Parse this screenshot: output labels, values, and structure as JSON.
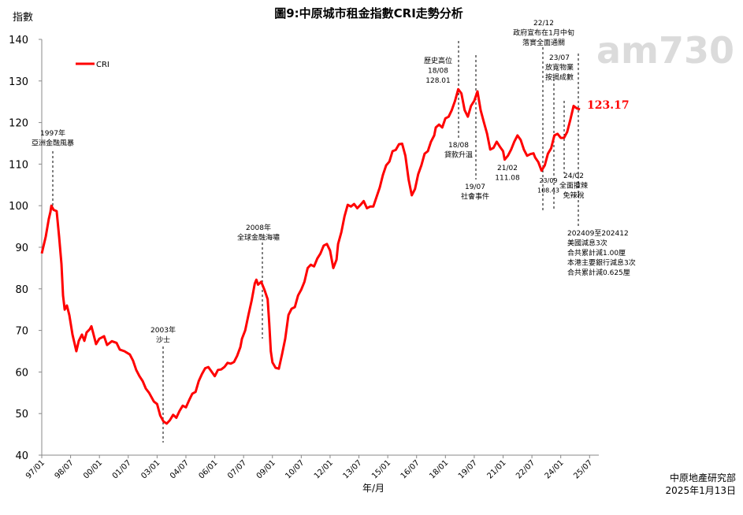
{
  "chart_data": {
    "type": "line",
    "title": "圖9:中原城市租金指數CRI走勢分析",
    "ylabel": "指數",
    "xlabel": "年/月",
    "ylim": [
      40,
      140
    ],
    "yticks": [
      40,
      50,
      60,
      70,
      80,
      90,
      100,
      110,
      120,
      130,
      140
    ],
    "x_unit": "months since 1997/01",
    "xlim": [
      0,
      342
    ],
    "xticks": [
      "97/01",
      "98/07",
      "00/01",
      "01/07",
      "03/01",
      "04/07",
      "06/01",
      "07/07",
      "09/01",
      "10/07",
      "12/01",
      "13/07",
      "15/01",
      "16/07",
      "18/01",
      "19/07",
      "21/01",
      "22/07",
      "24/01",
      "25/07"
    ],
    "xtick_step_months": 18,
    "grid": false,
    "legend": {
      "position": "top-left",
      "entries": [
        "CRI"
      ]
    },
    "series": [
      {
        "name": "CRI",
        "color": "#ff0000",
        "points": [
          [
            0,
            88.5
          ],
          [
            2.5,
            92.6
          ],
          [
            4.4,
            96.8
          ],
          [
            5.4,
            98.5
          ],
          [
            6,
            100
          ],
          [
            7.4,
            99
          ],
          [
            9.3,
            98.7
          ],
          [
            10.8,
            92.6
          ],
          [
            12.3,
            86
          ],
          [
            13.3,
            78.4
          ],
          [
            14.3,
            75
          ],
          [
            15.7,
            76
          ],
          [
            17.2,
            73.7
          ],
          [
            19.2,
            69
          ],
          [
            21.6,
            65
          ],
          [
            23.1,
            67.5
          ],
          [
            25.1,
            69
          ],
          [
            26.6,
            67.5
          ],
          [
            28,
            69.5
          ],
          [
            30,
            70.3
          ],
          [
            31,
            71
          ],
          [
            32,
            69.5
          ],
          [
            33.9,
            66.7
          ],
          [
            35.9,
            68
          ],
          [
            38.9,
            68.6
          ],
          [
            40.8,
            66.5
          ],
          [
            43.8,
            67.4
          ],
          [
            46.7,
            67
          ],
          [
            48.7,
            65.4
          ],
          [
            51.6,
            65
          ],
          [
            55,
            64.2
          ],
          [
            57,
            62.7
          ],
          [
            59,
            60.5
          ],
          [
            61,
            59
          ],
          [
            63,
            57.8
          ],
          [
            65,
            56
          ],
          [
            67,
            55
          ],
          [
            70,
            52.9
          ],
          [
            72,
            52.3
          ],
          [
            74,
            49.5
          ],
          [
            76,
            48.1
          ],
          [
            78,
            47.6
          ],
          [
            80,
            48.4
          ],
          [
            82,
            49.7
          ],
          [
            84,
            49
          ],
          [
            86,
            50.6
          ],
          [
            88,
            51.9
          ],
          [
            90,
            51.5
          ],
          [
            92,
            53.2
          ],
          [
            94,
            54.8
          ],
          [
            96,
            55.2
          ],
          [
            98,
            57.8
          ],
          [
            100,
            59.5
          ],
          [
            102,
            60.9
          ],
          [
            104,
            61.2
          ],
          [
            106,
            60.1
          ],
          [
            108,
            59
          ],
          [
            110,
            60.5
          ],
          [
            112,
            60.6
          ],
          [
            114,
            61.2
          ],
          [
            116,
            62.2
          ],
          [
            118,
            62
          ],
          [
            120,
            62.4
          ],
          [
            122,
            63.9
          ],
          [
            124,
            66
          ],
          [
            125,
            68
          ],
          [
            127,
            70
          ],
          [
            129,
            73.7
          ],
          [
            131,
            77.1
          ],
          [
            133,
            81.3
          ],
          [
            134,
            82.2
          ],
          [
            135,
            81
          ],
          [
            137,
            81.7
          ],
          [
            139,
            79.8
          ],
          [
            141,
            77.5
          ],
          [
            142,
            71.8
          ],
          [
            143,
            65
          ],
          [
            144,
            62.3
          ],
          [
            146,
            61
          ],
          [
            148,
            60.8
          ],
          [
            150,
            64.2
          ],
          [
            152,
            68
          ],
          [
            154,
            73.7
          ],
          [
            156,
            75.2
          ],
          [
            158,
            75.6
          ],
          [
            160,
            78.4
          ],
          [
            162,
            79.8
          ],
          [
            164,
            81.7
          ],
          [
            166,
            85
          ],
          [
            168,
            85.8
          ],
          [
            170,
            85.4
          ],
          [
            172,
            87.3
          ],
          [
            174,
            88.5
          ],
          [
            176,
            90.4
          ],
          [
            178,
            90.8
          ],
          [
            180,
            89.2
          ],
          [
            182,
            85
          ],
          [
            184,
            87
          ],
          [
            185,
            90.8
          ],
          [
            187,
            93.6
          ],
          [
            189,
            97.4
          ],
          [
            191,
            100.2
          ],
          [
            193,
            99.8
          ],
          [
            195,
            100.4
          ],
          [
            197,
            99.4
          ],
          [
            199,
            100.2
          ],
          [
            201,
            101.1
          ],
          [
            203,
            99.4
          ],
          [
            205,
            99.8
          ],
          [
            207,
            99.8
          ],
          [
            209,
            102.1
          ],
          [
            211,
            104.4
          ],
          [
            213,
            107.4
          ],
          [
            215,
            109.7
          ],
          [
            217,
            110.6
          ],
          [
            219,
            113.1
          ],
          [
            221,
            113.4
          ],
          [
            223,
            114.8
          ],
          [
            225,
            114.9
          ],
          [
            227,
            112
          ],
          [
            229,
            106.3
          ],
          [
            231,
            102.5
          ],
          [
            233,
            104
          ],
          [
            235,
            107.6
          ],
          [
            237,
            109.7
          ],
          [
            239,
            112.5
          ],
          [
            241,
            113.1
          ],
          [
            243,
            115.4
          ],
          [
            245,
            116.9
          ],
          [
            246,
            118.8
          ],
          [
            248,
            119.5
          ],
          [
            250,
            118.8
          ],
          [
            252,
            121
          ],
          [
            254,
            121.4
          ],
          [
            256,
            123
          ],
          [
            258,
            125.2
          ],
          [
            260,
            128.01
          ],
          [
            262,
            127
          ],
          [
            264,
            123
          ],
          [
            266,
            121.4
          ],
          [
            268,
            124
          ],
          [
            270,
            125.2
          ],
          [
            272,
            127.5
          ],
          [
            274,
            123
          ],
          [
            276,
            120.1
          ],
          [
            278,
            117.3
          ],
          [
            280,
            113.5
          ],
          [
            282,
            113.9
          ],
          [
            284,
            115.4
          ],
          [
            286,
            114.2
          ],
          [
            288,
            113.1
          ],
          [
            289,
            111.08
          ],
          [
            291,
            112
          ],
          [
            293,
            113.5
          ],
          [
            295,
            115.4
          ],
          [
            297,
            116.9
          ],
          [
            299,
            115.8
          ],
          [
            301,
            113.5
          ],
          [
            303,
            112
          ],
          [
            305,
            112.4
          ],
          [
            307,
            112.6
          ],
          [
            308,
            111.6
          ],
          [
            310,
            110.5
          ],
          [
            312,
            108.43
          ],
          [
            314,
            109.7
          ],
          [
            316,
            112.5
          ],
          [
            318,
            113.8
          ],
          [
            320,
            116.9
          ],
          [
            322,
            117.3
          ],
          [
            324,
            116.3
          ],
          [
            326,
            116.3
          ],
          [
            328,
            117.7
          ],
          [
            330,
            120.7
          ],
          [
            332,
            124
          ],
          [
            334,
            123.4
          ],
          [
            336,
            123.17
          ]
        ]
      }
    ],
    "last_value_label": "123.17",
    "annotations": [
      {
        "month": 6,
        "lines": [
          "1997年",
          "亞洲金融風暴"
        ]
      },
      {
        "month": 76,
        "lines": [
          "2003年",
          "沙士"
        ]
      },
      {
        "month": 135,
        "lines": [
          "2008年",
          "全球金融海嘯"
        ]
      },
      {
        "month": 260,
        "lines": [
          "歷史高位",
          "18/08",
          "128.01"
        ]
      },
      {
        "month": 260,
        "lines": [
          "18/08",
          "貸款升溫"
        ]
      },
      {
        "month": 270,
        "lines": [
          "19/07",
          "社會事件"
        ]
      },
      {
        "month": 289,
        "lines": [
          "21/02",
          "111.08"
        ]
      },
      {
        "month": 311,
        "lines": [
          "22/12",
          "政府宣布在1月中旬",
          "落實全面通關"
        ]
      },
      {
        "month": 318,
        "lines": [
          "23/07",
          "放寬物業",
          "按揭成數"
        ]
      },
      {
        "month": 312,
        "lines": [
          "23/09",
          "108.43"
        ]
      },
      {
        "month": 325,
        "lines": [
          "24/02",
          "全面撤辣",
          "免辣稅"
        ]
      },
      {
        "month": 335,
        "lines": [
          "202409至202412",
          "美國減息3次",
          "合共累計減1.00厘",
          "本港主要銀行減息3次",
          "合共累計減0.625厘"
        ]
      }
    ]
  },
  "footer": {
    "source": "中原地產研究部",
    "date": "2025年1月13日"
  },
  "watermark": "am730"
}
